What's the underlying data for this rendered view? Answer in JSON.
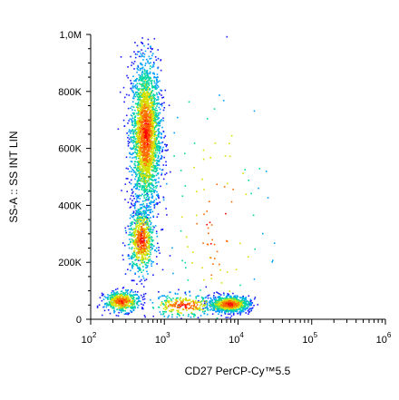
{
  "chart_data": {
    "type": "scatter",
    "xlabel": "CD27 PerCP-Cy™5.5",
    "ylabel": "SS-A :: SS INT LIN",
    "x_scale": "log",
    "x_range": [
      100,
      1000000
    ],
    "x_ticks": [
      {
        "base": "10",
        "exp": "2",
        "value": 100
      },
      {
        "base": "10",
        "exp": "3",
        "value": 1000
      },
      {
        "base": "10",
        "exp": "4",
        "value": 10000
      },
      {
        "base": "10",
        "exp": "5",
        "value": 100000
      },
      {
        "base": "10",
        "exp": "6",
        "value": 1000000
      }
    ],
    "y_scale": "linear",
    "y_range": [
      0,
      1000000
    ],
    "y_ticks": [
      {
        "label": "0",
        "value": 0
      },
      {
        "label": "200K",
        "value": 200000
      },
      {
        "label": "400K",
        "value": 400000
      },
      {
        "label": "600K",
        "value": 600000
      },
      {
        "label": "800K",
        "value": 800000
      },
      {
        "label": "1,0M",
        "value": 1000000
      }
    ],
    "color_scale": [
      "#1a1aff",
      "#00a0ff",
      "#00d8a0",
      "#d8e000",
      "#ff6a00",
      "#ff0000"
    ],
    "populations": [
      {
        "x_center": 550,
        "y_center": 650000,
        "x_spread_decades": 0.1,
        "y_spread": 130000,
        "count": 2600
      },
      {
        "x_center": 480,
        "y_center": 280000,
        "x_spread_decades": 0.09,
        "y_spread": 60000,
        "count": 700
      },
      {
        "x_center": 260,
        "y_center": 65000,
        "x_spread_decades": 0.12,
        "y_spread": 18000,
        "count": 500
      },
      {
        "x_center": 7500,
        "y_center": 55000,
        "x_spread_decades": 0.14,
        "y_spread": 14000,
        "count": 900
      },
      {
        "x_center": 1800,
        "y_center": 50000,
        "x_spread_decades": 0.25,
        "y_spread": 20000,
        "count": 300
      },
      {
        "x_center": 5000,
        "y_center": 350000,
        "x_spread_decades": 0.35,
        "y_spread": 250000,
        "count": 120
      }
    ]
  }
}
